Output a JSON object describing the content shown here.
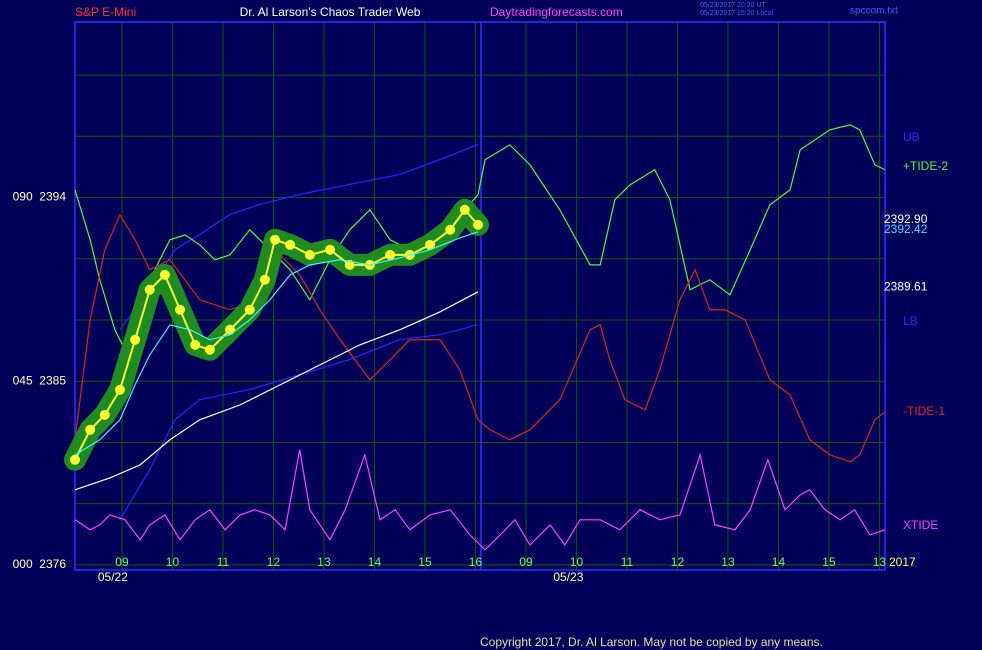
{
  "chart_data": {
    "type": "line",
    "title": "Dr. Al Larson's Chaos Trader Web",
    "header_left": "S&P E-Mini",
    "header_site": "Daytradingforecasts.com",
    "timestamps": [
      "05/23/2017 20:20 UT",
      "05/23/2017 15:20 Local"
    ],
    "file_name": "spccom.txt",
    "year": "2017",
    "copyright": "Copyright 2017, Dr. Al Larson. May not be copied by any means.",
    "xlim": [
      8.07,
      24.11
    ],
    "ylim": [
      2375.75,
      2402.6
    ],
    "xticks": [
      {
        "value": 9,
        "label": "09"
      },
      10,
      11,
      12,
      13,
      14,
      15,
      16,
      {
        "value": 17,
        "label": "09"
      },
      {
        "value": 18,
        "label": "10"
      },
      {
        "value": 19,
        "label": "11"
      },
      {
        "value": 20,
        "label": "12"
      },
      {
        "value": 21,
        "label": "13"
      },
      {
        "value": 22,
        "label": "14"
      },
      {
        "value": 23,
        "label": "15"
      },
      {
        "value": 24,
        "label": "13"
      }
    ],
    "date_labels": [
      {
        "value": 8.82,
        "label": "05/22"
      },
      {
        "value": 17.84,
        "label": "05/23"
      }
    ],
    "yticks": [
      {
        "value": 2394,
        "label": "090  2394"
      },
      {
        "value": 2385,
        "label": "045  2385"
      },
      {
        "value": 2376,
        "label": "000  2376"
      }
    ],
    "ygrid": [
      2376,
      2379,
      2382,
      2385,
      2388,
      2391,
      2394,
      2397,
      2400
    ],
    "grid": true,
    "price_labels": [
      {
        "value": 2392.9,
        "label": "2392.90",
        "color": "#ffffff"
      },
      {
        "value": 2392.42,
        "label": "2392.42",
        "color": "#40e0ff"
      },
      {
        "value": 2389.61,
        "label": "2389.61",
        "color": "#ffffff"
      }
    ],
    "series": [
      {
        "name": "UB",
        "color": "#2828ff",
        "x": [
          8.96,
          9.55,
          10.05,
          10.54,
          11.14,
          11.73,
          12.52,
          13.51,
          14.5,
          15.3,
          16.05
        ],
        "values": [
          2387.53,
          2389.49,
          2391.45,
          2392.19,
          2393.17,
          2393.66,
          2394.15,
          2394.64,
          2395.13,
          2395.86,
          2396.6
        ]
      },
      {
        "name": "+TIDE-2",
        "color": "#40ff40",
        "x": [
          8.07,
          8.37,
          8.56,
          8.86,
          9.06,
          9.36,
          9.65,
          9.95,
          10.25,
          10.54,
          10.84,
          11.14,
          11.53,
          11.93,
          12.33,
          12.72,
          13.12,
          13.51,
          13.91,
          14.31,
          14.7,
          15.1,
          15.69,
          16.05,
          16.19,
          16.68,
          17.08,
          17.67,
          18.27,
          18.47,
          18.76,
          19.06,
          19.55,
          19.85,
          20.25,
          20.64,
          21.04,
          21.44,
          21.83,
          22.23,
          22.43,
          23.02,
          23.42,
          23.61,
          23.91,
          24.11
        ],
        "values": [
          2394.38,
          2391.93,
          2389.97,
          2387.52,
          2386.54,
          2388.99,
          2390.46,
          2391.93,
          2392.17,
          2391.68,
          2390.95,
          2391.19,
          2392.42,
          2391.44,
          2390.46,
          2388.99,
          2390.95,
          2392.42,
          2393.4,
          2391.93,
          2391.44,
          2392.17,
          2393.15,
          2394.13,
          2395.85,
          2396.58,
          2395.6,
          2393.4,
          2390.7,
          2390.7,
          2393.89,
          2394.62,
          2395.36,
          2393.89,
          2389.48,
          2389.97,
          2389.23,
          2391.44,
          2393.64,
          2394.38,
          2396.34,
          2397.32,
          2397.56,
          2397.32,
          2395.6,
          2395.36
        ]
      },
      {
        "name": "LB",
        "color": "#2828ff",
        "x": [
          8.96,
          9.55,
          10.05,
          10.54,
          11.53,
          12.52,
          13.51,
          14.5,
          15.3,
          16.05
        ],
        "values": [
          2378.22,
          2380.67,
          2383.12,
          2384.1,
          2384.59,
          2385.32,
          2386.06,
          2387.04,
          2387.28,
          2387.77
        ]
      },
      {
        "name": "-TIDE-1",
        "color": "#e02020",
        "x": [
          8.07,
          8.37,
          8.66,
          8.96,
          9.26,
          9.55,
          9.95,
          10.54,
          11.14,
          11.73,
          12.13,
          12.52,
          12.92,
          13.32,
          13.91,
          14.31,
          14.7,
          15.3,
          15.69,
          16.05,
          16.29,
          16.68,
          17.08,
          17.67,
          18.27,
          18.47,
          18.66,
          18.96,
          19.36,
          19.65,
          20.05,
          20.35,
          20.64,
          20.94,
          21.34,
          21.83,
          22.23,
          22.62,
          23.02,
          23.42,
          23.61,
          23.91,
          24.11
        ],
        "values": [
          2382.13,
          2388.01,
          2391.44,
          2393.15,
          2391.93,
          2390.46,
          2390.95,
          2388.99,
          2388.5,
          2388.99,
          2391.19,
          2390.21,
          2388.5,
          2387.03,
          2385.07,
          2386.05,
          2387.03,
          2387.03,
          2385.56,
          2383.11,
          2382.62,
          2382.13,
          2382.62,
          2384.09,
          2387.52,
          2387.76,
          2386.05,
          2384.09,
          2383.6,
          2385.56,
          2388.99,
          2390.46,
          2388.5,
          2388.5,
          2388.01,
          2385.07,
          2384.33,
          2382.13,
          2381.39,
          2381.05,
          2381.39,
          2383.11,
          2383.5
        ]
      },
      {
        "name": "XTIDE",
        "color": "#ff40ff",
        "x": [
          8.07,
          8.37,
          8.56,
          8.76,
          9.06,
          9.36,
          9.55,
          9.85,
          10.15,
          10.45,
          10.74,
          11.04,
          11.34,
          11.63,
          11.93,
          12.23,
          12.52,
          12.72,
          13.12,
          13.42,
          13.81,
          14.11,
          14.41,
          14.7,
          15.1,
          15.5,
          15.89,
          16.19,
          16.49,
          16.78,
          17.08,
          17.48,
          17.77,
          18.07,
          18.47,
          18.86,
          19.26,
          19.65,
          20.05,
          20.45,
          20.74,
          21.14,
          21.44,
          21.79,
          22.13,
          22.43,
          22.62,
          22.92,
          23.22,
          23.51,
          23.81,
          24.11
        ],
        "values": [
          2378.21,
          2377.72,
          2377.96,
          2378.45,
          2378.21,
          2377.23,
          2377.96,
          2378.45,
          2377.23,
          2378.21,
          2378.7,
          2377.72,
          2378.45,
          2378.7,
          2378.45,
          2377.72,
          2381.64,
          2378.7,
          2377.23,
          2378.7,
          2381.39,
          2378.21,
          2378.7,
          2377.72,
          2378.45,
          2378.7,
          2377.47,
          2376.74,
          2377.47,
          2378.21,
          2376.98,
          2377.96,
          2376.98,
          2378.21,
          2378.21,
          2377.72,
          2378.7,
          2378.21,
          2378.45,
          2381.39,
          2377.96,
          2377.72,
          2378.7,
          2381.15,
          2378.7,
          2379.43,
          2379.68,
          2378.7,
          2378.21,
          2378.7,
          2377.47,
          2377.72
        ]
      },
      {
        "color": "#ffffff",
        "x": [
          8.07,
          8.76,
          9.36,
          9.95,
          10.54,
          11.34,
          12.13,
          12.92,
          13.71,
          14.5,
          15.3,
          16.05
        ],
        "values": [
          2379.68,
          2380.26,
          2380.9,
          2382.13,
          2383.11,
          2383.84,
          2384.82,
          2385.8,
          2386.78,
          2387.52,
          2388.4,
          2389.38
        ]
      },
      {
        "color": "#ffff30",
        "glow": "#1e8c1e",
        "x": [
          8.07,
          8.37,
          8.66,
          8.96,
          9.26,
          9.55,
          9.85,
          10.15,
          10.45,
          10.74,
          11.14,
          11.53,
          11.83,
          12.03,
          12.33,
          12.72,
          13.12,
          13.51,
          13.91,
          14.31,
          14.7,
          15.1,
          15.5,
          15.79,
          16.05
        ],
        "values": [
          2381.15,
          2382.62,
          2383.35,
          2384.58,
          2387.03,
          2389.48,
          2390.21,
          2388.5,
          2386.78,
          2386.54,
          2387.52,
          2388.5,
          2389.97,
          2391.93,
          2391.68,
          2391.19,
          2391.44,
          2390.7,
          2390.7,
          2391.19,
          2391.19,
          2391.68,
          2392.42,
          2393.4,
          2392.66
        ]
      },
      {
        "color": "#40f0ff",
        "x": [
          8.07,
          8.56,
          8.96,
          9.26,
          9.55,
          9.95,
          10.35,
          10.74,
          11.14,
          11.53,
          11.93,
          12.33,
          12.72,
          13.32,
          13.91,
          14.5,
          15.1,
          15.69,
          16.05
        ],
        "values": [
          2381.39,
          2382.13,
          2383.11,
          2384.82,
          2386.29,
          2387.76,
          2387.52,
          2387.03,
          2387.27,
          2388.01,
          2388.99,
          2390.21,
          2390.7,
          2390.95,
          2390.7,
          2391.04,
          2391.44,
          2392.02,
          2392.32
        ]
      }
    ]
  }
}
